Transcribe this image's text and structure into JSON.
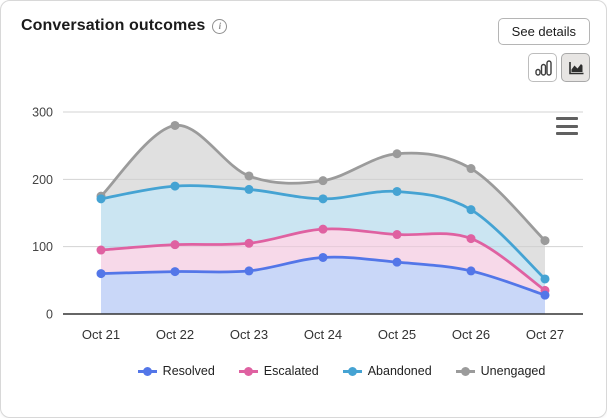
{
  "card": {
    "title": "Conversation outcomes",
    "info_icon": "i",
    "see_details_label": "See details",
    "toolbar": {
      "column_toggle_icon": "column-chart-icon",
      "area_toggle_icon": "area-chart-icon",
      "selected_view": "area"
    },
    "menu_icon": "hamburger-menu-icon"
  },
  "chart_data": {
    "type": "area",
    "title": "Conversation outcomes",
    "categories": [
      "Oct 21",
      "Oct 22",
      "Oct 23",
      "Oct 24",
      "Oct 25",
      "Oct 26",
      "Oct 27"
    ],
    "series": [
      {
        "name": "Resolved",
        "color": "#5376e8",
        "fill": "#c9d7f8",
        "values": [
          60,
          63,
          64,
          84,
          77,
          64,
          28
        ]
      },
      {
        "name": "Escalated",
        "color": "#df61a1",
        "fill": "#f7d9e9",
        "values": [
          95,
          103,
          105,
          126,
          118,
          112,
          35
        ]
      },
      {
        "name": "Abandoned",
        "color": "#45a3d3",
        "fill": "#cbe5f2",
        "values": [
          171,
          190,
          185,
          171,
          182,
          155,
          52
        ]
      },
      {
        "name": "Unengaged",
        "color": "#9b9b9b",
        "fill": "#e0e0e0",
        "values": [
          175,
          280,
          205,
          198,
          238,
          216,
          109
        ]
      }
    ],
    "xlabel": "",
    "ylabel": "",
    "ylim": [
      0,
      300
    ],
    "yticks": [
      0,
      100,
      200,
      300
    ],
    "grid": true,
    "legend_position": "bottom",
    "axis_color": "#333333",
    "gridline_color": "#e2e2e2",
    "tick_label_color": "#444444"
  }
}
